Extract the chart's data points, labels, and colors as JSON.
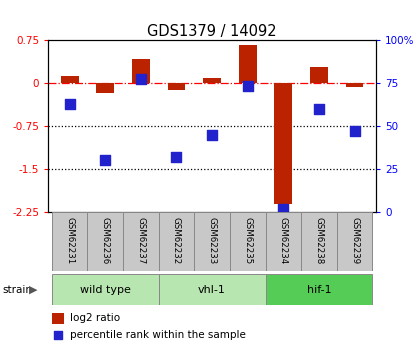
{
  "title": "GDS1379 / 14092",
  "samples": [
    "GSM62231",
    "GSM62236",
    "GSM62237",
    "GSM62232",
    "GSM62233",
    "GSM62235",
    "GSM62234",
    "GSM62238",
    "GSM62239"
  ],
  "log2_ratio": [
    0.12,
    -0.18,
    0.42,
    -0.13,
    0.08,
    0.65,
    -2.1,
    0.28,
    -0.07
  ],
  "percentile_rank": [
    63,
    30,
    77,
    32,
    45,
    73,
    2,
    60,
    47
  ],
  "groups": [
    {
      "label": "wild type",
      "start": 0,
      "end": 3,
      "color": "#b8e6b0"
    },
    {
      "label": "vhl-1",
      "start": 3,
      "end": 6,
      "color": "#b8e6b0"
    },
    {
      "label": "hif-1",
      "start": 6,
      "end": 9,
      "color": "#55cc55"
    }
  ],
  "ylim_left": [
    -2.25,
    0.75
  ],
  "ylim_right": [
    0,
    100
  ],
  "yticks_left": [
    -2.25,
    -1.5,
    -0.75,
    0,
    0.75
  ],
  "yticks_right": [
    0,
    25,
    50,
    75,
    100
  ],
  "hline_y": 0,
  "dotted_lines": [
    -0.75,
    -1.5
  ],
  "bar_color": "#bb2200",
  "dot_color": "#2222cc",
  "bar_width": 0.5,
  "dot_size": 45,
  "background_color": "#ffffff",
  "label_bg_color": "#c8c8c8",
  "legend_items": [
    {
      "label": "log2 ratio",
      "color": "#bb2200"
    },
    {
      "label": "percentile rank within the sample",
      "color": "#2222cc"
    }
  ]
}
